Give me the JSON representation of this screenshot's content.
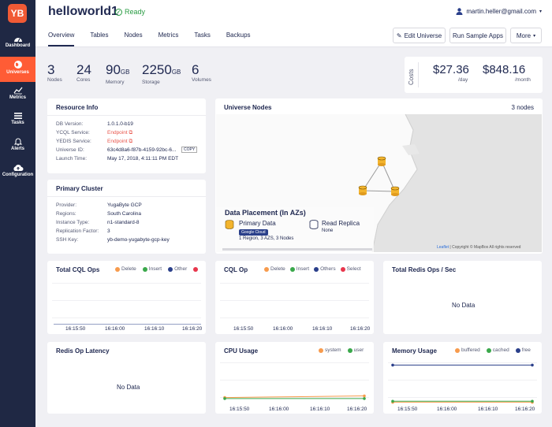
{
  "sidebar": {
    "logo": "YB",
    "items": [
      {
        "label": "Dashboard",
        "icon": "dashboard-icon"
      },
      {
        "label": "Universes",
        "icon": "globe-icon"
      },
      {
        "label": "Metrics",
        "icon": "line-chart-icon"
      },
      {
        "label": "Tasks",
        "icon": "list-icon"
      },
      {
        "label": "Alerts",
        "icon": "bell-icon"
      },
      {
        "label": "Configuration",
        "icon": "cloud-upload-icon"
      }
    ]
  },
  "header": {
    "title": "helloworld1",
    "status": "Ready",
    "user_email": "martin.heller@gmail.com",
    "tabs": [
      "Overview",
      "Tables",
      "Nodes",
      "Metrics",
      "Tasks",
      "Backups"
    ],
    "buttons": {
      "edit": "Edit Universe",
      "run": "Run Sample Apps",
      "more": "More"
    }
  },
  "stats": [
    {
      "value": "3",
      "unit": "",
      "label": "Nodes"
    },
    {
      "value": "24",
      "unit": "",
      "label": "Cores"
    },
    {
      "value": "90",
      "unit": "GB",
      "label": "Memory"
    },
    {
      "value": "2250",
      "unit": "GB",
      "label": "Storage"
    },
    {
      "value": "6",
      "unit": "",
      "label": "Volumes"
    }
  ],
  "costs": {
    "label": "Costs",
    "daily": "$27.36",
    "daily_unit": "/day",
    "monthly": "$848.16",
    "monthly_unit": "/month"
  },
  "resource_info": {
    "title": "Resource Info",
    "rows": [
      {
        "k": "DB Version:",
        "v": "1.0.1.0-b19"
      },
      {
        "k": "YCQL Service:",
        "v": "Endpoint"
      },
      {
        "k": "YEDIS Service:",
        "v": "Endpoint"
      },
      {
        "k": "Universe ID:",
        "v": "63c4d8a6-f87b-4159-92bc-6..."
      },
      {
        "k": "Launch Time:",
        "v": "May 17, 2018, 4:11:11 PM EDT"
      }
    ],
    "copy_label": "COPY"
  },
  "primary_cluster": {
    "title": "Primary Cluster",
    "rows": [
      {
        "k": "Provider:",
        "v": "YugaByte GCP"
      },
      {
        "k": "Regions:",
        "v": "South Carolina"
      },
      {
        "k": "Instance Type:",
        "v": "n1-standard-8"
      },
      {
        "k": "Replication Factor:",
        "v": "3"
      },
      {
        "k": "SSH Key:",
        "v": "yb-demo-yugabyte-gcp-key"
      }
    ]
  },
  "universe_nodes": {
    "title": "Universe Nodes",
    "count": "3 nodes",
    "placement_title": "Data Placement (In AZs)",
    "primary_label": "Primary Data",
    "primary_badge": "Google Cloud",
    "primary_detail": "1 Region, 3 AZS, 3 Nodes",
    "replica_label": "Read Replica",
    "replica_detail": "None",
    "attribution_link": "Leaflet",
    "attribution_text": " | Copyright © MapBox All rights reserved"
  },
  "charts": {
    "total_cql": {
      "title": "Total CQL Ops",
      "legend": [
        "Delete",
        "Insert",
        "Other",
        ""
      ]
    },
    "cql_op": {
      "title": "CQL Op",
      "legend": [
        "Delete",
        "Insert",
        "Others",
        "Select"
      ]
    },
    "redis_ops": {
      "title": "Total Redis Ops / Sec",
      "no_data": "No Data"
    },
    "redis_latency": {
      "title": "Redis Op Latency",
      "no_data": "No Data"
    },
    "cpu": {
      "title": "CPU Usage",
      "legend": [
        "system",
        "user"
      ]
    },
    "memory": {
      "title": "Memory Usage",
      "legend": [
        "buffered",
        "cached",
        "free"
      ]
    },
    "ticks": [
      "16:15:50",
      "16:16:00",
      "16:16:10",
      "16:16:20"
    ]
  },
  "colors": {
    "orange": "#f79b4d",
    "green": "#3aa84b",
    "navy": "#2a3f8a",
    "red": "#e8364c",
    "accent": "#ff5c35"
  },
  "chart_data": [
    {
      "type": "line",
      "title": "CPU Usage",
      "x": [
        "16:15:50",
        "16:16:00",
        "16:16:10",
        "16:16:20"
      ],
      "series": [
        {
          "name": "system",
          "values": [
            5.5,
            6.0,
            6.5,
            7.0
          ]
        },
        {
          "name": "user",
          "values": [
            4.5,
            4.5,
            4.5,
            4.5
          ]
        }
      ],
      "ylim": [
        0,
        40
      ]
    },
    {
      "type": "line",
      "title": "Memory Usage",
      "x": [
        "16:15:50",
        "16:16:00",
        "16:16:10",
        "16:16:20"
      ],
      "series": [
        {
          "name": "buffered",
          "values": [
            1,
            1,
            1,
            1
          ]
        },
        {
          "name": "cached",
          "values": [
            2,
            2,
            2,
            2
          ]
        },
        {
          "name": "free",
          "values": [
            36,
            36,
            36,
            36
          ]
        }
      ],
      "ylim": [
        0,
        40
      ]
    }
  ]
}
